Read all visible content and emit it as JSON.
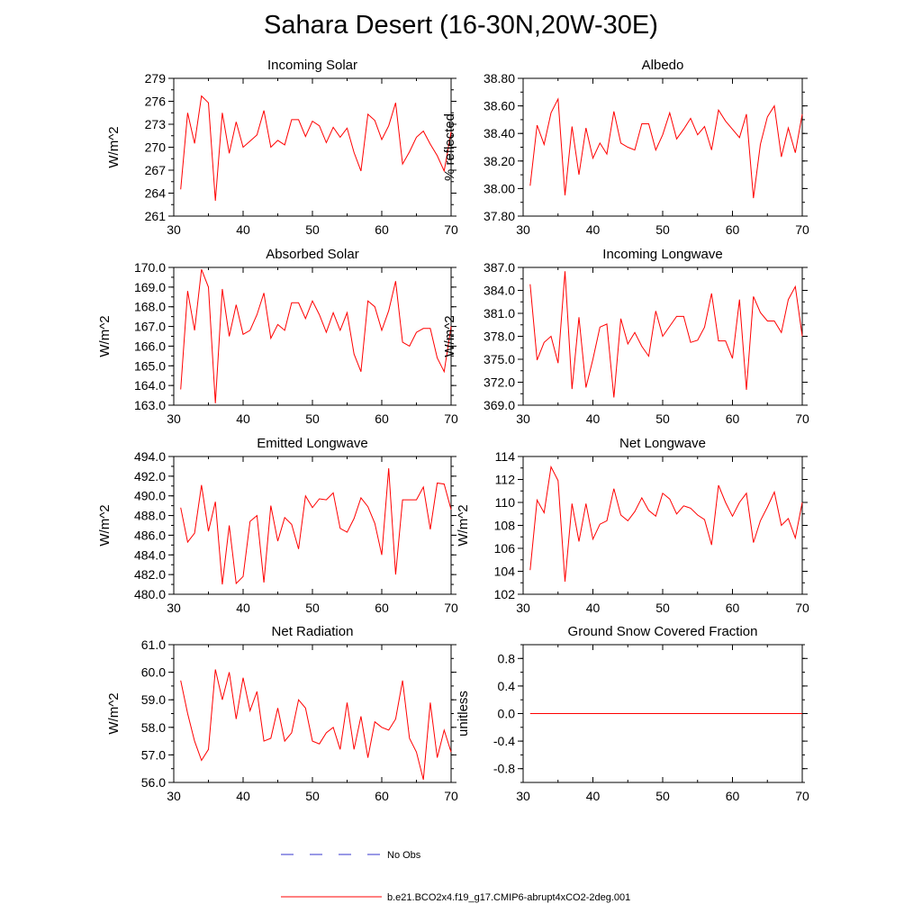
{
  "title": "Sahara Desert (16-30N,20W-30E)",
  "colors": {
    "model": "#ff0000",
    "obs": "#3333cc",
    "axis": "#000000"
  },
  "legend": {
    "obs_label": "No Obs",
    "model_label": "b.e21.BCO2x4.f19_g17.CMIP6-abrupt4xCO2-2deg.001"
  },
  "chart_data": [
    {
      "type": "line",
      "title": "Incoming Solar",
      "xlabel": "",
      "ylabel": "W/m^2",
      "xlim": [
        30,
        70
      ],
      "ylim": [
        261,
        279
      ],
      "xticks": [
        30,
        40,
        50,
        60,
        70
      ],
      "xtick_labels": [
        "30",
        "40",
        "50",
        "60",
        "70"
      ],
      "yticks": [
        261,
        264,
        267,
        270,
        273,
        276,
        279
      ],
      "ytick_labels": [
        "261",
        "264",
        "267",
        "270",
        "273",
        "276",
        "279"
      ],
      "series": [
        {
          "name": "b.e21.BCO2x4.f19_g17.CMIP6-abrupt4xCO2-2deg.001",
          "x": [
            31,
            32,
            33,
            34,
            35,
            36,
            37,
            38,
            39,
            40,
            41,
            42,
            43,
            44,
            45,
            46,
            47,
            48,
            49,
            50,
            51,
            52,
            53,
            54,
            55,
            56,
            57,
            58,
            59,
            60,
            61,
            62,
            63,
            64,
            65,
            66,
            67,
            68,
            69,
            70
          ],
          "values": [
            264.5,
            274.5,
            270.5,
            276.7,
            275.8,
            263.0,
            274.5,
            269.2,
            273.3,
            270.0,
            270.8,
            271.6,
            274.8,
            270.0,
            270.9,
            270.3,
            273.6,
            273.6,
            271.4,
            273.4,
            272.8,
            270.6,
            272.6,
            271.3,
            272.5,
            269.3,
            266.9,
            274.3,
            273.5,
            271.0,
            272.8,
            275.8,
            267.8,
            269.4,
            271.3,
            272.1,
            270.4,
            268.9,
            266.9,
            272.0
          ]
        }
      ]
    },
    {
      "type": "line",
      "title": "Albedo",
      "xlabel": "",
      "ylabel": "% reflected",
      "xlim": [
        30,
        70
      ],
      "ylim": [
        37.8,
        38.8
      ],
      "xticks": [
        30,
        40,
        50,
        60,
        70
      ],
      "xtick_labels": [
        "30",
        "40",
        "50",
        "60",
        "70"
      ],
      "yticks": [
        37.8,
        38.0,
        38.2,
        38.4,
        38.6,
        38.8
      ],
      "ytick_labels": [
        "37.80",
        "38.00",
        "38.20",
        "38.40",
        "38.60",
        "38.80"
      ],
      "series": [
        {
          "name": "b.e21.BCO2x4.f19_g17.CMIP6-abrupt4xCO2-2deg.001",
          "x": [
            31,
            32,
            33,
            34,
            35,
            36,
            37,
            38,
            39,
            40,
            41,
            42,
            43,
            44,
            45,
            46,
            47,
            48,
            49,
            50,
            51,
            52,
            53,
            54,
            55,
            56,
            57,
            58,
            59,
            60,
            61,
            62,
            63,
            64,
            65,
            66,
            67,
            68,
            69,
            70
          ],
          "values": [
            38.02,
            38.46,
            38.32,
            38.55,
            38.65,
            37.95,
            38.45,
            38.1,
            38.44,
            38.22,
            38.33,
            38.25,
            38.56,
            38.33,
            38.3,
            38.28,
            38.47,
            38.47,
            38.28,
            38.39,
            38.55,
            38.36,
            38.43,
            38.51,
            38.39,
            38.45,
            38.28,
            38.57,
            38.49,
            38.43,
            38.37,
            38.54,
            37.93,
            38.32,
            38.52,
            38.6,
            38.23,
            38.44,
            38.26,
            38.54
          ]
        }
      ]
    },
    {
      "type": "line",
      "title": "Absorbed Solar",
      "xlabel": "",
      "ylabel": "W/m^2",
      "xlim": [
        30,
        70
      ],
      "ylim": [
        163.0,
        170.0
      ],
      "xticks": [
        30,
        40,
        50,
        60,
        70
      ],
      "xtick_labels": [
        "30",
        "40",
        "50",
        "60",
        "70"
      ],
      "yticks": [
        163,
        164,
        165,
        166,
        167,
        168,
        169,
        170
      ],
      "ytick_labels": [
        "163.0",
        "164.0",
        "165.0",
        "166.0",
        "167.0",
        "168.0",
        "169.0",
        "170.0"
      ],
      "series": [
        {
          "name": "b.e21.BCO2x4.f19_g17.CMIP6-abrupt4xCO2-2deg.001",
          "x": [
            31,
            32,
            33,
            34,
            35,
            36,
            37,
            38,
            39,
            40,
            41,
            42,
            43,
            44,
            45,
            46,
            47,
            48,
            49,
            50,
            51,
            52,
            53,
            54,
            55,
            56,
            57,
            58,
            59,
            60,
            61,
            62,
            63,
            64,
            65,
            66,
            67,
            68,
            69,
            70
          ],
          "values": [
            163.8,
            168.8,
            166.8,
            169.9,
            169.0,
            163.1,
            168.9,
            166.5,
            168.1,
            166.6,
            166.8,
            167.6,
            168.7,
            166.4,
            167.1,
            166.8,
            168.2,
            168.2,
            167.4,
            168.3,
            167.6,
            166.7,
            167.7,
            166.8,
            167.7,
            165.6,
            164.7,
            168.3,
            168.0,
            166.8,
            167.8,
            169.3,
            166.2,
            166.0,
            166.7,
            166.9,
            166.9,
            165.4,
            164.7,
            167.0
          ]
        }
      ]
    },
    {
      "type": "line",
      "title": "Incoming Longwave",
      "xlabel": "",
      "ylabel": "W/m^2",
      "xlim": [
        30,
        70
      ],
      "ylim": [
        369.0,
        387.0
      ],
      "xticks": [
        30,
        40,
        50,
        60,
        70
      ],
      "xtick_labels": [
        "30",
        "40",
        "50",
        "60",
        "70"
      ],
      "yticks": [
        369,
        372,
        375,
        378,
        381,
        384,
        387
      ],
      "ytick_labels": [
        "369.0",
        "372.0",
        "375.0",
        "378.0",
        "381.0",
        "384.0",
        "387.0"
      ],
      "series": [
        {
          "name": "b.e21.BCO2x4.f19_g17.CMIP6-abrupt4xCO2-2deg.001",
          "x": [
            31,
            32,
            33,
            34,
            35,
            36,
            37,
            38,
            39,
            40,
            41,
            42,
            43,
            44,
            45,
            46,
            47,
            48,
            49,
            50,
            51,
            52,
            53,
            54,
            55,
            56,
            57,
            58,
            59,
            60,
            61,
            62,
            63,
            64,
            65,
            66,
            67,
            68,
            69,
            70
          ],
          "values": [
            384.8,
            374.9,
            377.2,
            378.0,
            374.5,
            386.5,
            371.1,
            380.5,
            371.3,
            375.0,
            379.2,
            379.6,
            370.0,
            380.3,
            377.0,
            378.5,
            376.7,
            375.4,
            381.3,
            378.0,
            379.3,
            380.6,
            380.6,
            377.2,
            377.5,
            379.2,
            383.6,
            377.4,
            377.4,
            375.1,
            382.8,
            371.0,
            383.2,
            381.1,
            380.0,
            380.0,
            378.5,
            382.8,
            384.5,
            378.0
          ]
        }
      ]
    },
    {
      "type": "line",
      "title": "Emitted Longwave",
      "xlabel": "",
      "ylabel": "W/m^2",
      "xlim": [
        30,
        70
      ],
      "ylim": [
        480.0,
        494.0
      ],
      "xticks": [
        30,
        40,
        50,
        60,
        70
      ],
      "xtick_labels": [
        "30",
        "40",
        "50",
        "60",
        "70"
      ],
      "yticks": [
        480,
        482,
        484,
        486,
        488,
        490,
        492,
        494
      ],
      "ytick_labels": [
        "480.0",
        "482.0",
        "484.0",
        "486.0",
        "488.0",
        "490.0",
        "492.0",
        "494.0"
      ],
      "series": [
        {
          "name": "b.e21.BCO2x4.f19_g17.CMIP6-abrupt4xCO2-2deg.001",
          "x": [
            31,
            32,
            33,
            34,
            35,
            36,
            37,
            38,
            39,
            40,
            41,
            42,
            43,
            44,
            45,
            46,
            47,
            48,
            49,
            50,
            51,
            52,
            53,
            54,
            55,
            56,
            57,
            58,
            59,
            60,
            61,
            62,
            63,
            64,
            65,
            66,
            67,
            68,
            69,
            70
          ],
          "values": [
            488.8,
            485.3,
            486.2,
            491.1,
            486.4,
            489.4,
            481.0,
            487.0,
            481.1,
            481.8,
            487.4,
            488.0,
            481.2,
            489.0,
            485.4,
            487.8,
            487.1,
            484.6,
            490.0,
            488.8,
            489.7,
            489.6,
            490.3,
            486.7,
            486.3,
            487.7,
            489.8,
            488.9,
            487.2,
            484.0,
            492.8,
            482.0,
            489.6,
            489.6,
            489.6,
            490.9,
            486.6,
            491.3,
            491.2,
            488.6
          ]
        }
      ]
    },
    {
      "type": "line",
      "title": "Net Longwave",
      "xlabel": "",
      "ylabel": "W/m^2",
      "xlim": [
        30,
        70
      ],
      "ylim": [
        102,
        114
      ],
      "xticks": [
        30,
        40,
        50,
        60,
        70
      ],
      "xtick_labels": [
        "30",
        "40",
        "50",
        "60",
        "70"
      ],
      "yticks": [
        102,
        104,
        106,
        108,
        110,
        112,
        114
      ],
      "ytick_labels": [
        "102",
        "104",
        "106",
        "108",
        "110",
        "112",
        "114"
      ],
      "series": [
        {
          "name": "b.e21.BCO2x4.f19_g17.CMIP6-abrupt4xCO2-2deg.001",
          "x": [
            31,
            32,
            33,
            34,
            35,
            36,
            37,
            38,
            39,
            40,
            41,
            42,
            43,
            44,
            45,
            46,
            47,
            48,
            49,
            50,
            51,
            52,
            53,
            54,
            55,
            56,
            57,
            58,
            59,
            60,
            61,
            62,
            63,
            64,
            65,
            66,
            67,
            68,
            69,
            70
          ],
          "values": [
            104.1,
            110.2,
            109.1,
            113.1,
            111.9,
            103.1,
            109.9,
            106.6,
            109.9,
            106.8,
            108.1,
            108.4,
            111.2,
            108.9,
            108.4,
            109.2,
            110.4,
            109.3,
            108.8,
            110.8,
            110.3,
            109.0,
            109.7,
            109.5,
            108.9,
            108.5,
            106.3,
            111.5,
            110.0,
            108.8,
            110.0,
            110.8,
            106.5,
            108.4,
            109.6,
            110.9,
            108.0,
            108.6,
            106.9,
            110.0
          ]
        }
      ]
    },
    {
      "type": "line",
      "title": "Net Radiation",
      "xlabel": "",
      "ylabel": "W/m^2",
      "xlim": [
        30,
        70
      ],
      "ylim": [
        56.0,
        61.0
      ],
      "xticks": [
        30,
        40,
        50,
        60,
        70
      ],
      "xtick_labels": [
        "30",
        "40",
        "50",
        "60",
        "70"
      ],
      "yticks": [
        56,
        57,
        58,
        59,
        60,
        61
      ],
      "ytick_labels": [
        "56.0",
        "57.0",
        "58.0",
        "59.0",
        "60.0",
        "61.0"
      ],
      "series": [
        {
          "name": "b.e21.BCO2x4.f19_g17.CMIP6-abrupt4xCO2-2deg.001",
          "x": [
            31,
            32,
            33,
            34,
            35,
            36,
            37,
            38,
            39,
            40,
            41,
            42,
            43,
            44,
            45,
            46,
            47,
            48,
            49,
            50,
            51,
            52,
            53,
            54,
            55,
            56,
            57,
            58,
            59,
            60,
            61,
            62,
            63,
            64,
            65,
            66,
            67,
            68,
            69,
            70
          ],
          "values": [
            59.7,
            58.5,
            57.5,
            56.8,
            57.2,
            60.1,
            59.0,
            60.0,
            58.3,
            59.8,
            58.6,
            59.3,
            57.5,
            57.6,
            58.7,
            57.5,
            57.8,
            59.0,
            58.7,
            57.5,
            57.4,
            57.8,
            58.0,
            57.2,
            58.9,
            57.2,
            58.4,
            56.9,
            58.2,
            58.0,
            57.9,
            58.3,
            59.7,
            57.6,
            57.1,
            56.1,
            58.9,
            56.9,
            57.9,
            57.1
          ]
        }
      ]
    },
    {
      "type": "line",
      "title": "Ground Snow Covered Fraction",
      "xlabel": "",
      "ylabel": "unitless",
      "xlim": [
        30,
        70
      ],
      "ylim": [
        -1.0,
        1.0
      ],
      "xticks": [
        30,
        40,
        50,
        60,
        70
      ],
      "xtick_labels": [
        "30",
        "40",
        "50",
        "60",
        "70"
      ],
      "yticks": [
        -0.8,
        -0.4,
        0.0,
        0.4,
        0.8
      ],
      "ytick_labels": [
        "-0.8",
        "-0.4",
        "0.0",
        "0.4",
        "0.8"
      ],
      "series": [
        {
          "name": "b.e21.BCO2x4.f19_g17.CMIP6-abrupt4xCO2-2deg.001",
          "x": [
            31,
            32,
            33,
            34,
            35,
            36,
            37,
            38,
            39,
            40,
            41,
            42,
            43,
            44,
            45,
            46,
            47,
            48,
            49,
            50,
            51,
            52,
            53,
            54,
            55,
            56,
            57,
            58,
            59,
            60,
            61,
            62,
            63,
            64,
            65,
            66,
            67,
            68,
            69,
            70
          ],
          "values": [
            0,
            0,
            0,
            0,
            0,
            0,
            0,
            0,
            0,
            0,
            0,
            0,
            0,
            0,
            0,
            0,
            0,
            0,
            0,
            0,
            0,
            0,
            0,
            0,
            0,
            0,
            0,
            0,
            0,
            0,
            0,
            0,
            0,
            0,
            0,
            0,
            0,
            0,
            0,
            0
          ]
        }
      ]
    }
  ]
}
